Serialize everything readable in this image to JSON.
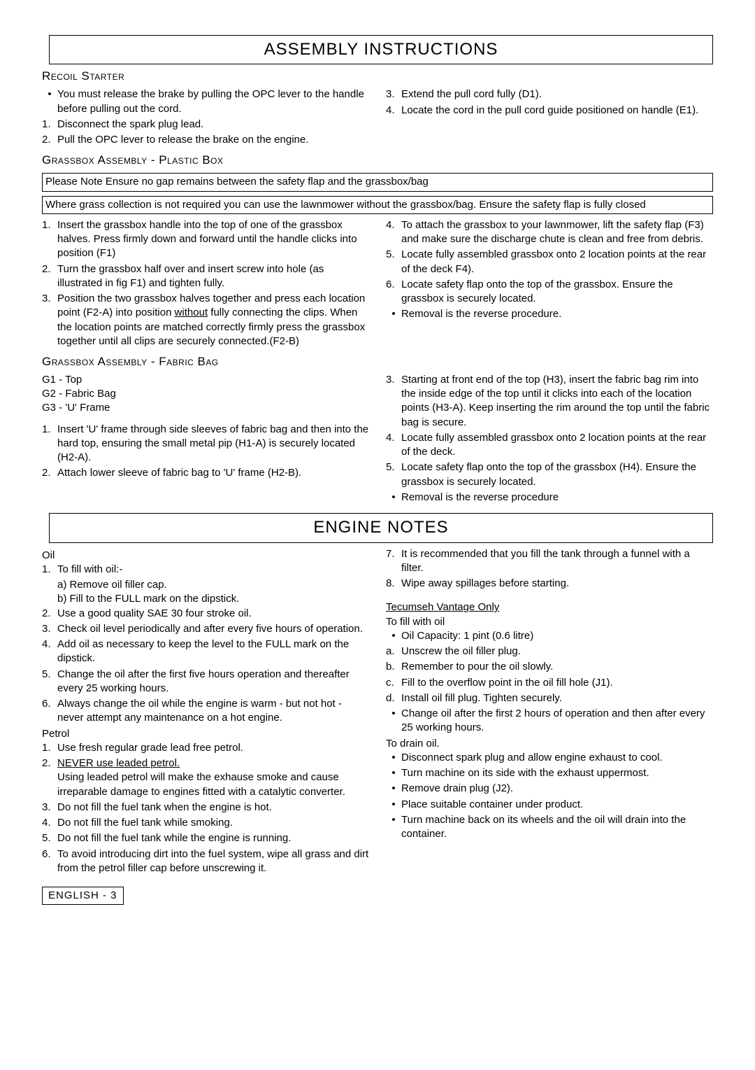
{
  "title1": "ASSEMBLY INSTRUCTIONS",
  "recoil": {
    "heading": "Recoil Starter",
    "left": [
      {
        "m": "•",
        "t": "You must release the brake by pulling the OPC lever to the handle before pulling out the cord."
      },
      {
        "m": "1.",
        "t": "Disconnect the spark plug lead."
      },
      {
        "m": "2.",
        "t": "Pull the OPC lever to release the brake on the engine."
      }
    ],
    "right": [
      {
        "m": "3.",
        "t": "Extend the pull cord fully (D1)."
      },
      {
        "m": "4.",
        "t": "Locate the cord in the pull cord guide positioned on handle (E1)."
      }
    ]
  },
  "grassboxPlastic": {
    "heading": "Grassbox Assembly - Plastic Box",
    "note1": "Please Note Ensure no gap remains between the safety flap and the grassbox/bag",
    "note2": "Where grass collection is not required you can use the lawnmower without the grassbox/bag. Ensure the safety flap is fully closed",
    "left": [
      {
        "m": "1.",
        "t": "Insert the grassbox handle into the top of one of the grassbox halves.  Press firmly down and forward until the handle clicks into position (F1)"
      },
      {
        "m": "2.",
        "t": "Turn the grassbox half over and insert screw into hole (as illustrated in fig F1) and tighten fully."
      },
      {
        "m": "3.",
        "t": "Position the two grassbox halves together and press each location point (F2-A) into position ",
        "u": "without",
        "t2": " fully connecting the clips.  When the location points are matched correctly firmly press the grassbox together until all clips are securely connected.(F2-B)"
      }
    ],
    "right": [
      {
        "m": "4.",
        "t": "To attach the grassbox to your lawnmower, lift the safety flap (F3) and make sure the discharge chute is clean and free from debris."
      },
      {
        "m": "5.",
        "t": "Locate fully assembled grassbox onto 2 location points at the rear of the deck F4)."
      },
      {
        "m": "6.",
        "t": "Locate safety flap onto the top of the grassbox. Ensure the grassbox is securely located."
      },
      {
        "m": "•",
        "t": "Removal is the reverse procedure."
      }
    ]
  },
  "grassboxFabric": {
    "heading": "Grassbox Assembly - Fabric Bag",
    "g1": "G1 - Top",
    "g2": "G2 - Fabric Bag",
    "g3": "G3 -  'U' Frame",
    "left": [
      {
        "m": "1.",
        "t": "Insert 'U' frame through side sleeves of fabric bag and then into the hard top, ensuring the small metal pip (H1-A) is securely located (H2-A)."
      },
      {
        "m": "2.",
        "t": "Attach lower sleeve of fabric bag to 'U' frame (H2-B)."
      }
    ],
    "right": [
      {
        "m": "3.",
        "t": "Starting at front end of the top (H3), insert the fabric bag rim into the inside edge of the top until it clicks into each of the location points (H3-A). Keep inserting the rim around the top until the fabric bag is secure."
      },
      {
        "m": "4.",
        "t": "Locate fully assembled grassbox onto 2 location points at the rear of the deck."
      },
      {
        "m": "5.",
        "t": "Locate safety flap onto the top of the grassbox (H4).  Ensure the grassbox is securely located."
      },
      {
        "m": "•",
        "t": "Removal is the reverse procedure"
      }
    ]
  },
  "title2": "ENGINE NOTES",
  "engine": {
    "oilHead": "Oil",
    "oil": [
      {
        "m": "1.",
        "t": "To fill with oil:-"
      },
      {
        "sub": "a) Remove oil filler cap."
      },
      {
        "sub": "b) Fill to the FULL mark on the dipstick."
      },
      {
        "m": "2.",
        "t": "Use a good quality SAE 30 four stroke oil."
      },
      {
        "m": "3.",
        "t": "Check oil level periodically and after every five hours of operation."
      },
      {
        "m": "4.",
        "t": "Add oil as necessary to keep the level to the FULL mark on the dipstick."
      },
      {
        "m": "5.",
        "t": "Change the oil after the first five hours operation and thereafter every 25 working hours."
      },
      {
        "m": "6.",
        "t": "Always change the oil while the engine is warm - but not hot - never attempt any maintenance on a hot engine."
      }
    ],
    "petrolHead": "Petrol",
    "petrol": [
      {
        "m": "1.",
        "t": "Use fresh regular grade lead free petrol."
      },
      {
        "m": "2.",
        "u": "NEVER use leaded petrol.",
        "t2": " Using leaded petrol will make the exhause smoke and cause irreparable damage to engines fitted with a catalytic converter."
      },
      {
        "m": "3.",
        "t": "Do not fill the fuel tank when the engine is hot."
      },
      {
        "m": "4.",
        "t": "Do not fill the fuel tank while smoking."
      },
      {
        "m": "5.",
        "t": "Do not fill the fuel tank while the engine is running."
      },
      {
        "m": "6.",
        "t": "To avoid introducing dirt into the fuel system, wipe all grass and dirt from the petrol filler cap before unscrewing it."
      }
    ],
    "right7": {
      "m": "7.",
      "t": "It is recommended that you fill the tank through a funnel with a filter."
    },
    "right8": {
      "m": "8.",
      "t": "Wipe away spillages before starting."
    },
    "tecumsehHead": "Tecumseh Vantage Only",
    "toFill": "To fill with oil",
    "fill": [
      {
        "m": "•",
        "t": "Oil Capacity: 1 pint (0.6 litre)"
      },
      {
        "m": "a.",
        "t": "Unscrew the oil filler plug."
      },
      {
        "m": "b.",
        "t": "Remember to pour the oil slowly."
      },
      {
        "m": "c.",
        "t": "Fill to the overflow point in the oil fill hole (J1)."
      },
      {
        "m": "d.",
        "t": "Install oil fill plug.  Tighten securely."
      },
      {
        "m": "•",
        "t": "Change oil after the first 2 hours of operation and then after every 25 working hours."
      }
    ],
    "toDrain": "To drain oil.",
    "drain": [
      {
        "m": "•",
        "t": "Disconnect spark plug and allow engine exhaust to cool."
      },
      {
        "m": "•",
        "t": "Turn machine on its side with the exhaust uppermost."
      },
      {
        "m": "•",
        "t": "Remove drain plug  (J2)."
      },
      {
        "m": "•",
        "t": "Place suitable container under product."
      },
      {
        "m": "•",
        "t": "Turn machine back on its wheels and the oil will drain into the container."
      }
    ]
  },
  "footer": "ENGLISH - 3"
}
